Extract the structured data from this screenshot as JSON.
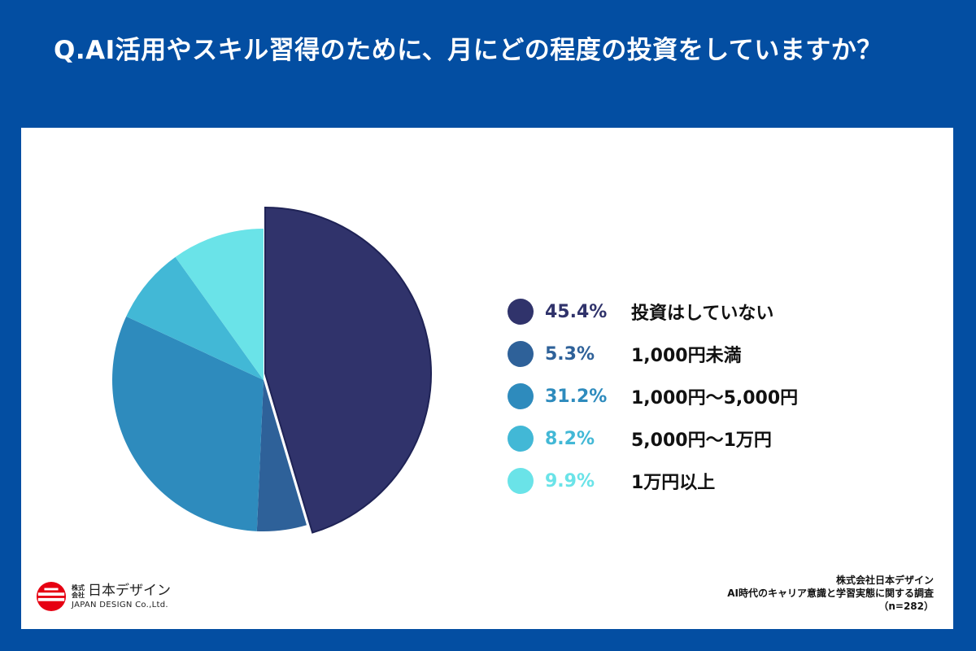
{
  "title": "Q.AI活用やスキル習得のために、月にどの程度の投資をしていますか？",
  "chart_data": {
    "type": "pie",
    "categories": [
      "投資はしていない",
      "1,000円未満",
      "1,000円〜5,000円",
      "5,000円〜1万円",
      "1万円以上"
    ],
    "values": [
      45.4,
      5.3,
      31.2,
      8.2,
      9.9
    ],
    "value_labels": [
      "45.4%",
      "5.3%",
      "31.2%",
      "8.2%",
      "9.9%"
    ],
    "colors": [
      "#30336b",
      "#2e6199",
      "#2e8bbd",
      "#42b8d6",
      "#6ae3e8"
    ],
    "exploded_slice": "投資はしていない",
    "legend_position": "right"
  },
  "logo": {
    "company_prefix": "株式会社",
    "company_name": "日本デザイン",
    "english_name": "JAPAN DESIGN Co.,Ltd."
  },
  "source": {
    "company": "株式会社日本デザイン",
    "survey": "AI時代のキャリア意識と学習実態に関する調査",
    "sample": "（n=282）"
  }
}
